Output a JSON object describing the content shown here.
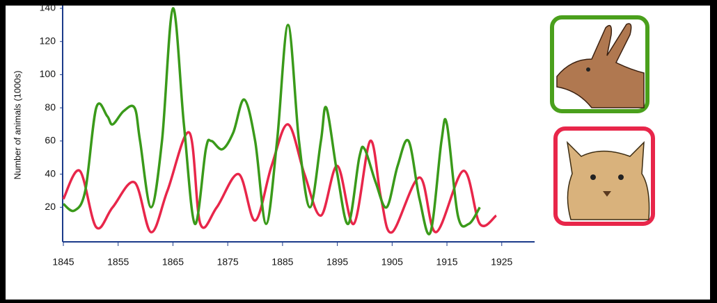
{
  "chart_data": {
    "type": "line",
    "y_label": "Number of animals (1000s)",
    "xlim": [
      1845,
      1931
    ],
    "xticks": [
      1845,
      1855,
      1865,
      1875,
      1885,
      1895,
      1905,
      1915,
      1925
    ],
    "ylim": [
      0,
      140
    ],
    "yticks": [
      20,
      40,
      60,
      80,
      100,
      120,
      140
    ],
    "grid": false,
    "series": [
      {
        "color": "#3a9a1a",
        "x": [
          1845,
          1847,
          1849,
          1851,
          1853,
          1854,
          1856,
          1858,
          1859,
          1861,
          1863,
          1865,
          1867,
          1869,
          1871,
          1872,
          1874,
          1876,
          1878,
          1880,
          1882,
          1884,
          1886,
          1888,
          1890,
          1892,
          1893,
          1895,
          1897,
          1899,
          1900,
          1902,
          1904,
          1906,
          1908,
          1910,
          1912,
          1914,
          1915,
          1917,
          1919,
          1921
        ],
        "values": [
          22,
          18,
          30,
          80,
          75,
          70,
          78,
          80,
          60,
          20,
          60,
          140,
          70,
          10,
          55,
          60,
          55,
          65,
          85,
          60,
          10,
          60,
          130,
          60,
          20,
          60,
          80,
          40,
          10,
          50,
          55,
          35,
          20,
          45,
          60,
          25,
          5,
          60,
          70,
          15,
          10,
          20
        ]
      },
      {
        "color": "#e8264a",
        "x": [
          1845,
          1848,
          1851,
          1854,
          1858,
          1861,
          1864,
          1868,
          1870,
          1873,
          1877,
          1880,
          1883,
          1886,
          1889,
          1892,
          1895,
          1898,
          1901,
          1903,
          1905,
          1910,
          1913,
          1918,
          1921,
          1924
        ],
        "values": [
          25,
          42,
          8,
          20,
          35,
          5,
          30,
          65,
          10,
          20,
          40,
          12,
          45,
          70,
          40,
          15,
          45,
          10,
          60,
          25,
          5,
          38,
          5,
          42,
          10,
          15
        ]
      }
    ]
  }
}
